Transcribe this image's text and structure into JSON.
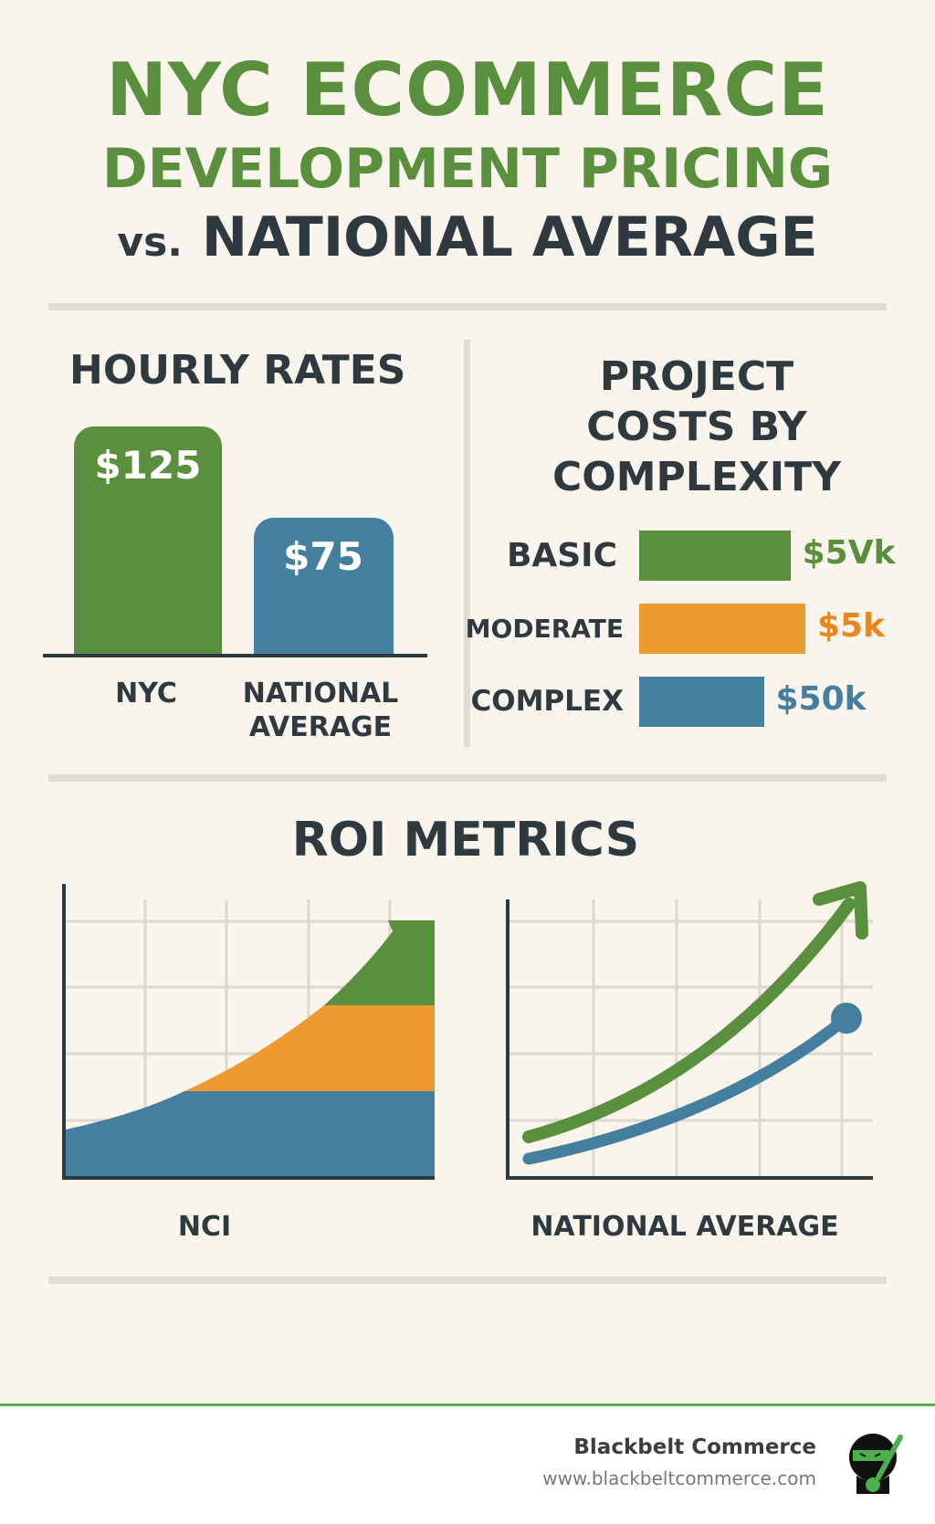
{
  "title": {
    "line1": "NYC ECOMMERCE",
    "line2": "DEVELOPMENT PRICING",
    "line3_prefix": "vs.",
    "line3": "NATIONAL AVERAGE"
  },
  "colors": {
    "green": "#5a8f3e",
    "orange": "#ee9a2e",
    "blue": "#447f9f",
    "text": "#2f3a40",
    "background": "#f9f5ec",
    "footer_accent": "#4cae4c"
  },
  "chart_data": [
    {
      "type": "bar",
      "title": "HOURLY RATES",
      "categories": [
        "NYC",
        "NATIONAL AVERAGE"
      ],
      "category_lines": [
        [
          "NYC"
        ],
        [
          "NATIONAL",
          "AVERAGE"
        ]
      ],
      "values": [
        125,
        75
      ],
      "data_labels": [
        "$125",
        "$75"
      ],
      "colors": [
        "#5a8f3e",
        "#447f9f"
      ],
      "ylim": [
        0,
        125
      ]
    },
    {
      "type": "bar",
      "orientation": "horizontal",
      "title_lines": [
        "PROJECT",
        "COSTS BY",
        "COMPLEXITY"
      ],
      "categories": [
        "BASIC",
        "MODERATE",
        "COMPLEX"
      ],
      "data_labels": [
        "$5Vk",
        "$5k",
        "$50k"
      ],
      "relative_lengths": [
        0.91,
        1.0,
        0.75
      ],
      "colors": [
        "#5a8f3e",
        "#ee9a2e",
        "#447f9f"
      ]
    },
    {
      "type": "area",
      "section_title": "ROI METRICS",
      "xlabel": "NCI",
      "series_colors": [
        "#447f9f",
        "#ee9a2e",
        "#5a8f3e"
      ],
      "grid": true,
      "trend": "rising"
    },
    {
      "type": "line",
      "xlabel": "NATIONAL AVERAGE",
      "series_colors": [
        "#5a8f3e",
        "#447f9f"
      ],
      "grid": true,
      "trend": "rising"
    }
  ],
  "footer": {
    "brand": "Blackbelt Commerce",
    "url": "www.blackbeltcommerce.com",
    "logo": "ninja-logo"
  }
}
